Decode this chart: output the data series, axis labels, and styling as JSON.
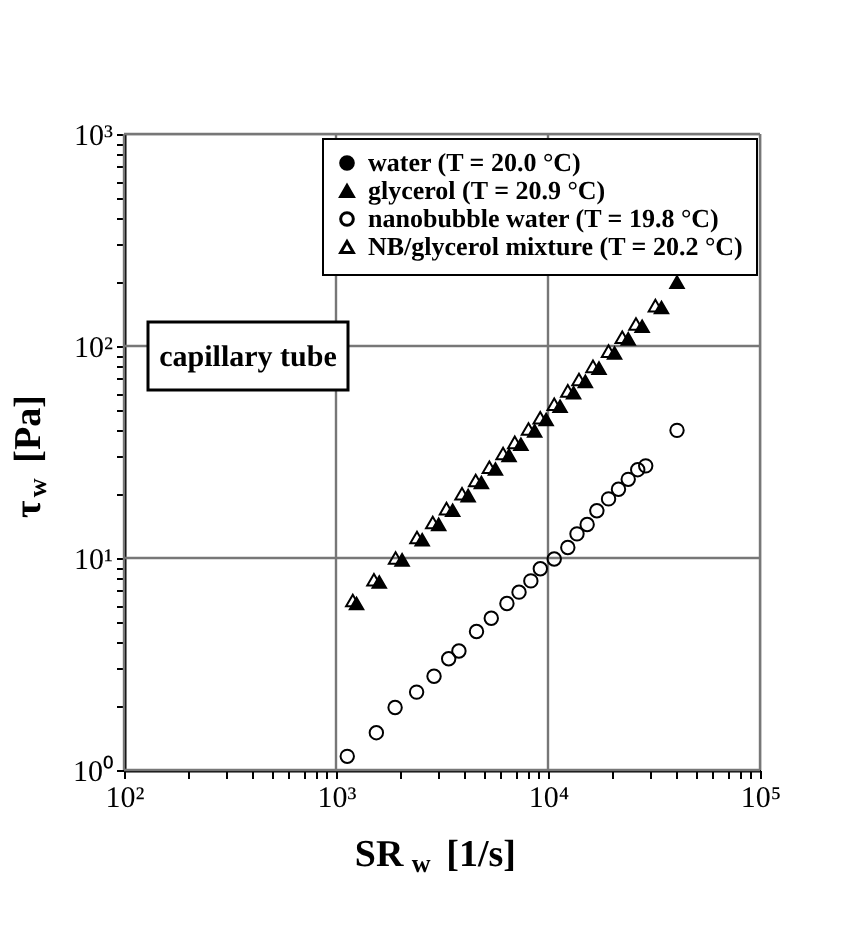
{
  "chart_data": {
    "type": "scatter",
    "xlabel": "SR$_{w}$ [1/s]",
    "ylabel": "τ$_{w}$ [Pa]",
    "log": "xy",
    "grid": true,
    "legend": "top right",
    "xlim": [
      100,
      100000
    ],
    "ylim": [
      1,
      1000
    ],
    "xticks": [
      {
        "value": 100,
        "label": "10²"
      },
      {
        "value": 200,
        "label": null
      },
      {
        "value": 300,
        "label": null
      },
      {
        "value": 400,
        "label": null
      },
      {
        "value": 500,
        "label": null
      },
      {
        "value": 600,
        "label": null
      },
      {
        "value": 700,
        "label": null
      },
      {
        "value": 800,
        "label": null
      },
      {
        "value": 900,
        "label": null
      },
      {
        "value": 1000,
        "label": "10³"
      },
      {
        "value": 2000,
        "label": null
      },
      {
        "value": 3000,
        "label": null
      },
      {
        "value": 4000,
        "label": null
      },
      {
        "value": 5000,
        "label": null
      },
      {
        "value": 6000,
        "label": null
      },
      {
        "value": 7000,
        "label": null
      },
      {
        "value": 8000,
        "label": null
      },
      {
        "value": 9000,
        "label": null
      },
      {
        "value": 10000,
        "label": "10⁴"
      },
      {
        "value": 20000,
        "label": null
      },
      {
        "value": 30000,
        "label": null
      },
      {
        "value": 40000,
        "label": null
      },
      {
        "value": 50000,
        "label": null
      },
      {
        "value": 60000,
        "label": null
      },
      {
        "value": 70000,
        "label": null
      },
      {
        "value": 80000,
        "label": null
      },
      {
        "value": 90000,
        "label": null
      },
      {
        "value": 100000,
        "label": "10⁵"
      }
    ],
    "yticks": [
      {
        "value": 1,
        "label": "10⁰"
      },
      {
        "value": 2,
        "label": null
      },
      {
        "value": 3,
        "label": null
      },
      {
        "value": 4,
        "label": null
      },
      {
        "value": 5,
        "label": null
      },
      {
        "value": 6,
        "label": null
      },
      {
        "value": 7,
        "label": null
      },
      {
        "value": 8,
        "label": null
      },
      {
        "value": 9,
        "label": null
      },
      {
        "value": 10,
        "label": "10¹"
      },
      {
        "value": 20,
        "label": null
      },
      {
        "value": 30,
        "label": null
      },
      {
        "value": 40,
        "label": null
      },
      {
        "value": 50,
        "label": null
      },
      {
        "value": 60,
        "label": null
      },
      {
        "value": 70,
        "label": null
      },
      {
        "value": 80,
        "label": null
      },
      {
        "value": 90,
        "label": null
      },
      {
        "value": 100,
        "label": "10²"
      },
      {
        "value": 200,
        "label": null
      },
      {
        "value": 300,
        "label": null
      },
      {
        "value": 400,
        "label": null
      },
      {
        "value": 500,
        "label": null
      },
      {
        "value": 600,
        "label": null
      },
      {
        "value": 700,
        "label": null
      },
      {
        "value": 800,
        "label": null
      },
      {
        "value": 900,
        "label": null
      },
      {
        "value": 1000,
        "label": "10³"
      }
    ],
    "annotations": [
      "capillary tube"
    ],
    "series": [
      {
        "name": "water (T = 20.0 °C)",
        "color": "#000000",
        "marker": "circle"
      },
      {
        "name": "glycerol (T = 20.9 °C)",
        "color": "#000000",
        "marker": "triangle",
        "x": [
          1250,
          1600,
          2050,
          2550,
          3050,
          3550,
          4200,
          4850,
          5650,
          6550,
          7450,
          8650,
          9800,
          11400,
          13200,
          15000,
          17400,
          20600,
          23900,
          27800,
          34300,
          40600
        ],
        "values": [
          6.1,
          7.7,
          9.8,
          12.2,
          14.4,
          16.8,
          19.7,
          22.7,
          26.3,
          30.5,
          34.4,
          39.8,
          45.0,
          52.0,
          60.2,
          68.1,
          78.6,
          92.7,
          108,
          124,
          152,
          200
        ]
      },
      {
        "name": "nanobubble water (T = 19.8 °C)",
        "color": "#000000",
        "marker": "circle_open",
        "x": [
          1130,
          1550,
          1900,
          2400,
          2900,
          3400,
          3800,
          4600,
          5400,
          6400,
          7300,
          8300,
          9200,
          10700,
          12400,
          13700,
          15300,
          17000,
          19300,
          21500,
          23900,
          26500,
          28900,
          40600
        ],
        "values": [
          1.16,
          1.5,
          1.97,
          2.33,
          2.77,
          3.35,
          3.64,
          4.5,
          5.2,
          6.1,
          6.9,
          7.8,
          8.9,
          9.9,
          11.2,
          13.0,
          14.4,
          16.7,
          19.0,
          21.1,
          23.5,
          26.1,
          27.2,
          40
        ]
      },
      {
        "name": "NB/glycerol mixture (T = 20.2 °C)",
        "color": "#000000",
        "marker": "triangle_open",
        "x": [
          1200,
          1510,
          1910,
          2410,
          2860,
          3320,
          3930,
          4560,
          5290,
          6140,
          6970,
          8090,
          9190,
          10700,
          12400,
          14000,
          16300,
          19300,
          22400,
          26000,
          32100
        ],
        "values": [
          6.3,
          7.9,
          10.0,
          12.5,
          14.7,
          17.1,
          20.1,
          23.2,
          26.8,
          31.1,
          35.1,
          40.6,
          45.9,
          53.1,
          61.4,
          69.5,
          80.2,
          94.6,
          110,
          127,
          155
        ]
      }
    ]
  }
}
